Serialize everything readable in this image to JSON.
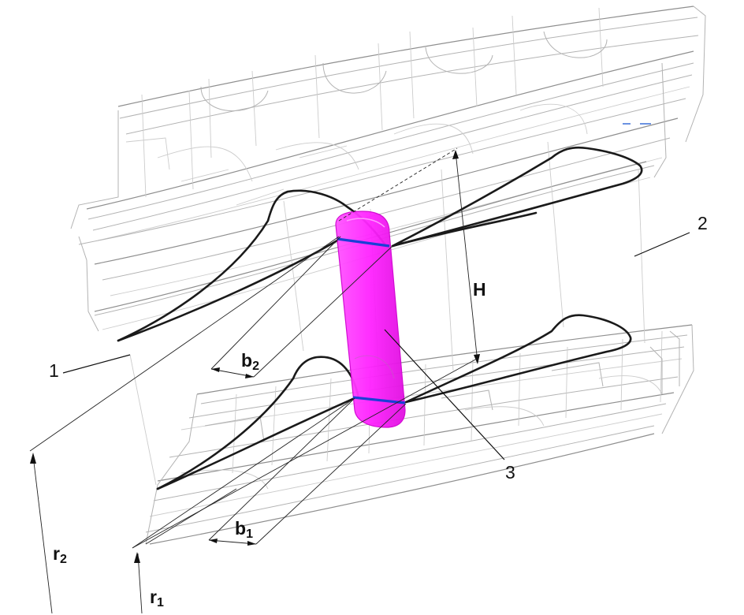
{
  "labels": {
    "part_1": "1",
    "part_2": "2",
    "part_3": "3",
    "height": "H",
    "b2": {
      "main": "b",
      "sub": "2"
    },
    "b1": {
      "main": "b",
      "sub": "1"
    },
    "r2": {
      "main": "r",
      "sub": "2"
    },
    "r1": {
      "main": "r",
      "sub": "1"
    }
  },
  "colors": {
    "wireframe": "#b3b3b3",
    "profile": "#1a1a1a",
    "insert_fill": "#ff33ff",
    "insert_edge": "#1a3fd6",
    "background": "#ffffff"
  }
}
